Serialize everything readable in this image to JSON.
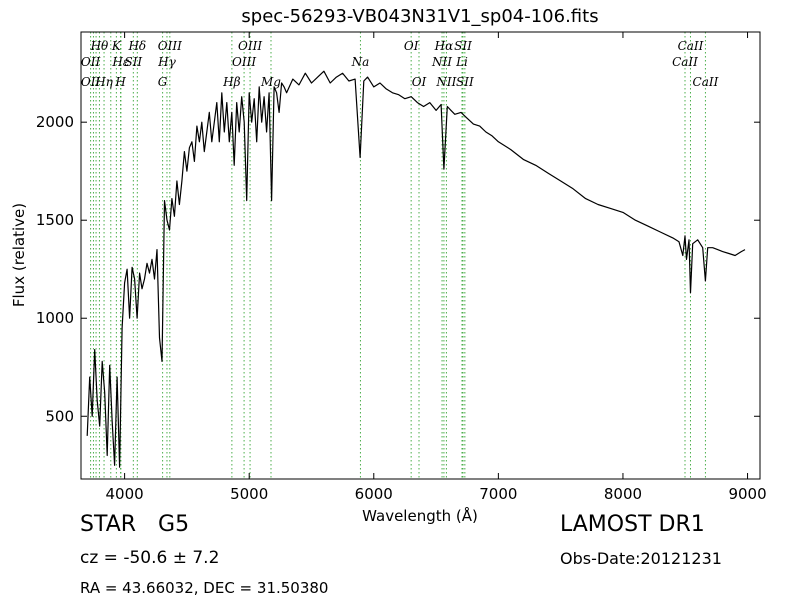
{
  "chart_data": {
    "type": "line",
    "title": "spec-56293-VB043N31V1_sp04-106.fits",
    "xlabel": "Wavelength (Å)",
    "ylabel": "Flux (relative)",
    "xlim": [
      3650,
      9100
    ],
    "ylim": [
      180,
      2460
    ],
    "xticks": [
      4000,
      5000,
      6000,
      7000,
      8000,
      9000
    ],
    "yticks": [
      500,
      1000,
      1500,
      2000
    ],
    "grid": false,
    "series": [
      {
        "color": "#000000",
        "x": [
          3700,
          3720,
          3740,
          3760,
          3780,
          3800,
          3820,
          3840,
          3860,
          3880,
          3900,
          3920,
          3940,
          3960,
          3980,
          4000,
          4020,
          4040,
          4060,
          4080,
          4100,
          4120,
          4140,
          4160,
          4180,
          4200,
          4220,
          4240,
          4260,
          4280,
          4300,
          4320,
          4340,
          4360,
          4380,
          4400,
          4420,
          4440,
          4460,
          4480,
          4500,
          4520,
          4540,
          4560,
          4580,
          4600,
          4620,
          4640,
          4660,
          4680,
          4700,
          4720,
          4740,
          4760,
          4780,
          4800,
          4820,
          4840,
          4860,
          4880,
          4900,
          4920,
          4940,
          4960,
          4980,
          5000,
          5020,
          5040,
          5060,
          5080,
          5100,
          5120,
          5140,
          5160,
          5180,
          5200,
          5220,
          5240,
          5260,
          5280,
          5300,
          5350,
          5400,
          5450,
          5500,
          5550,
          5600,
          5650,
          5700,
          5750,
          5800,
          5850,
          5890,
          5920,
          5950,
          6000,
          6050,
          6100,
          6150,
          6200,
          6250,
          6300,
          6350,
          6400,
          6450,
          6500,
          6540,
          6563,
          6590,
          6620,
          6650,
          6700,
          6750,
          6800,
          6850,
          6900,
          6950,
          7000,
          7100,
          7200,
          7300,
          7400,
          7500,
          7600,
          7700,
          7800,
          7900,
          8000,
          8100,
          8200,
          8300,
          8400,
          8450,
          8480,
          8498,
          8510,
          8530,
          8542,
          8560,
          8600,
          8640,
          8662,
          8680,
          8720,
          8760,
          8800,
          8850,
          8900,
          8950,
          8980
        ],
        "y": [
          400,
          700,
          500,
          840,
          580,
          450,
          780,
          620,
          300,
          760,
          480,
          250,
          700,
          240,
          950,
          1180,
          1250,
          1000,
          1260,
          1200,
          1000,
          1230,
          1150,
          1200,
          1280,
          1230,
          1300,
          1200,
          1350,
          900,
          780,
          1600,
          1500,
          1450,
          1610,
          1520,
          1700,
          1580,
          1700,
          1850,
          1750,
          1870,
          1900,
          1800,
          1980,
          1900,
          2000,
          1850,
          1950,
          2050,
          1900,
          2000,
          2100,
          1900,
          2150,
          1950,
          2100,
          1900,
          2050,
          1780,
          2100,
          1950,
          2130,
          2000,
          1600,
          2150,
          2000,
          2120,
          1900,
          2180,
          2000,
          2130,
          1950,
          2150,
          1600,
          2180,
          2150,
          2050,
          2200,
          2180,
          2150,
          2220,
          2190,
          2250,
          2200,
          2230,
          2260,
          2200,
          2230,
          2250,
          2210,
          2220,
          1820,
          2210,
          2230,
          2180,
          2200,
          2170,
          2150,
          2140,
          2120,
          2130,
          2100,
          2080,
          2100,
          2060,
          2090,
          1760,
          2080,
          2060,
          2040,
          2050,
          2020,
          1990,
          1980,
          1950,
          1930,
          1900,
          1860,
          1810,
          1780,
          1740,
          1700,
          1660,
          1610,
          1580,
          1560,
          1540,
          1500,
          1470,
          1440,
          1410,
          1390,
          1320,
          1420,
          1300,
          1400,
          1130,
          1380,
          1400,
          1360,
          1190,
          1360,
          1360,
          1350,
          1340,
          1330,
          1320,
          1340,
          1350
        ]
      }
    ],
    "line_labels": [
      {
        "text": "Hθ",
        "x": 3798,
        "color": "#2ca02c",
        "row": 0
      },
      {
        "text": "K",
        "x": 3934,
        "color": "#2ca02c",
        "row": 0
      },
      {
        "text": "Hδ",
        "x": 4102,
        "color": "#2ca02c",
        "row": 0
      },
      {
        "text": "OIII",
        "x": 4363,
        "color": "#2ca02c",
        "row": 0
      },
      {
        "text": "OIII",
        "x": 5007,
        "color": "#2ca02c",
        "row": 0
      },
      {
        "text": "OI",
        "x": 6300,
        "color": "#2ca02c",
        "row": 0
      },
      {
        "text": "Hα",
        "x": 6563,
        "color": "#2ca02c",
        "row": 0
      },
      {
        "text": "SII",
        "x": 6716,
        "color": "#2ca02c",
        "row": 0
      },
      {
        "text": "CaII",
        "x": 8542,
        "color": "#2ca02c",
        "row": 0
      },
      {
        "text": "OII",
        "x": 3727,
        "color": "#2ca02c",
        "row": 1
      },
      {
        "text": "Hε",
        "x": 3970,
        "color": "#2ca02c",
        "row": 1
      },
      {
        "text": "SII",
        "x": 4070,
        "color": "#2ca02c",
        "row": 1
      },
      {
        "text": "Hγ",
        "x": 4340,
        "color": "#2ca02c",
        "row": 1
      },
      {
        "text": "OIII",
        "x": 4959,
        "color": "#2ca02c",
        "row": 1
      },
      {
        "text": "Na",
        "x": 5893,
        "color": "#2ca02c",
        "row": 1
      },
      {
        "text": "NII",
        "x": 6548,
        "color": "#2ca02c",
        "row": 1
      },
      {
        "text": "Li",
        "x": 6708,
        "color": "#2ca02c",
        "row": 1
      },
      {
        "text": "CaII",
        "x": 8498,
        "color": "#2ca02c",
        "row": 1
      },
      {
        "text": "OII",
        "x": 3727,
        "color": "#2ca02c",
        "row": 2
      },
      {
        "text": "Hη",
        "x": 3835,
        "color": "#2ca02c",
        "row": 2
      },
      {
        "text": "H",
        "x": 3968,
        "color": "#2ca02c",
        "row": 2
      },
      {
        "text": "G",
        "x": 4305,
        "color": "#2ca02c",
        "row": 2
      },
      {
        "text": "Hβ",
        "x": 4861,
        "color": "#2ca02c",
        "row": 2
      },
      {
        "text": "Mg",
        "x": 5175,
        "color": "#2ca02c",
        "row": 2
      },
      {
        "text": "OI",
        "x": 6363,
        "color": "#2ca02c",
        "row": 2
      },
      {
        "text": "NII",
        "x": 6583,
        "color": "#2ca02c",
        "row": 2
      },
      {
        "text": "SII",
        "x": 6731,
        "color": "#2ca02c",
        "row": 2
      },
      {
        "text": "CaII",
        "x": 8662,
        "color": "#2ca02c",
        "row": 2
      }
    ],
    "line_markers": [
      3727,
      3750,
      3771,
      3798,
      3835,
      3889,
      3934,
      3968,
      3970,
      4070,
      4102,
      4305,
      4340,
      4363,
      4861,
      4959,
      5007,
      5175,
      5893,
      6300,
      6363,
      6548,
      6563,
      6583,
      6708,
      6716,
      6731,
      8498,
      8542,
      8662
    ]
  },
  "info": {
    "object_type": "STAR",
    "subclass": "G5",
    "redshift": "cz = -50.6 ± 7.2",
    "coords": "RA = 43.66032, DEC = 31.50380",
    "survey": "LAMOST DR1",
    "obs_date": "Obs-Date:20121231"
  }
}
